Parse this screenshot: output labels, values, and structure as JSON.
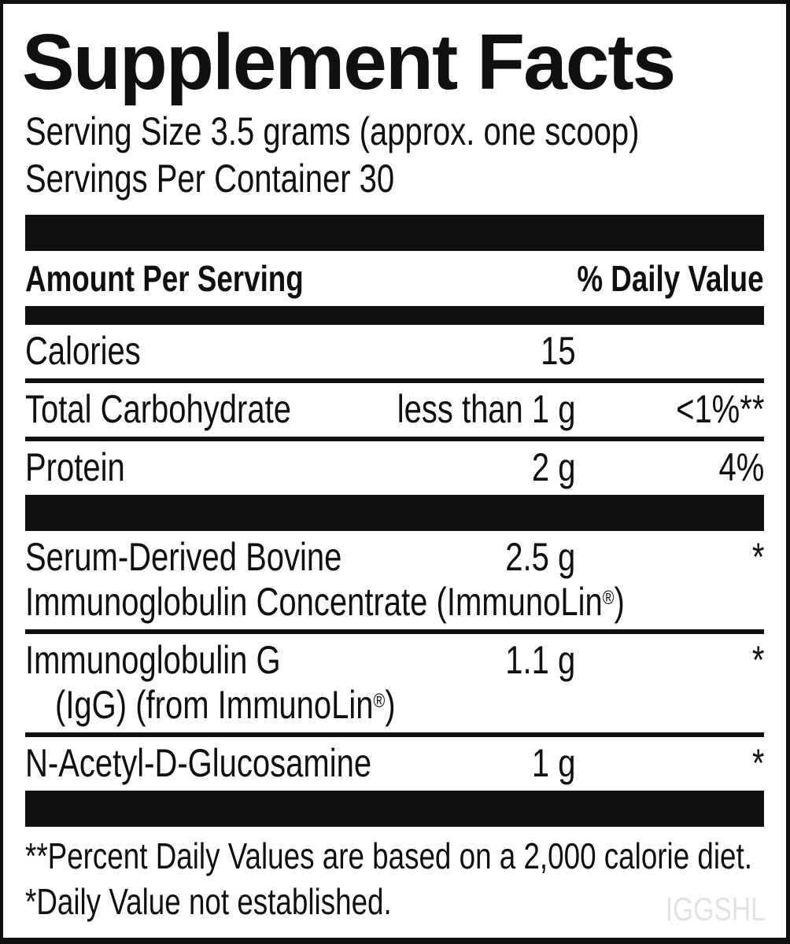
{
  "panel": {
    "title": "Supplement Facts",
    "serving_size": "Serving Size 3.5 grams (approx. one scoop)",
    "servings_per_container": "Servings Per Container 30",
    "watermark": "IGGSHL",
    "colors": {
      "ink": "#101010",
      "background": "#ffffff",
      "watermark": "#e3e3e3"
    }
  },
  "table": {
    "amount_header": "Amount Per Serving",
    "daily_value_header": "% Daily Value",
    "rows": [
      {
        "name": "Calories",
        "amount": "15",
        "daily_value": ""
      },
      {
        "name": "Total Carbohydrate",
        "amount": "less than 1 g",
        "daily_value": "<1%**"
      },
      {
        "name": "Protein",
        "amount": "2 g",
        "daily_value": "4%"
      },
      {
        "name_line1": "Serum-Derived Bovine",
        "name_line2_pre": "Immunoglobulin Concentrate (ImmunoLin",
        "name_line2_sup": "®",
        "name_line2_post": ")",
        "amount": "2.5 g",
        "daily_value": "*"
      },
      {
        "name_line1": "Immunoglobulin G",
        "name_line2_pre": "(IgG) (from ImmunoLin",
        "name_line2_sup": "®",
        "name_line2_post": ")",
        "amount": "1.1 g",
        "daily_value": "*"
      },
      {
        "name": "N-Acetyl-D-Glucosamine",
        "amount": "1 g",
        "daily_value": "*"
      }
    ]
  },
  "footnotes": {
    "line1": "**Percent Daily Values are based on a 2,000 calorie diet.",
    "line2": "*Daily Value not established."
  }
}
